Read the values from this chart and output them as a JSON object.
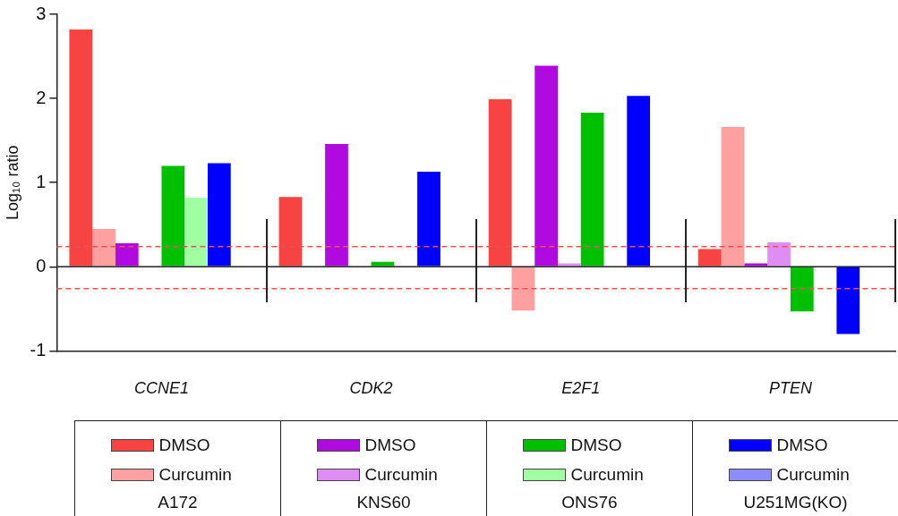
{
  "chart_data": {
    "type": "bar",
    "ylabel": "Log₁₀ ratio",
    "categories": [
      "CCNE1",
      "CDK2",
      "E2F1",
      "PTEN"
    ],
    "series": [
      {
        "name": "DMSO",
        "color": "#f84343",
        "values": [
          2.82,
          0.83,
          1.99,
          0.21
        ]
      },
      {
        "name": "Curcumin",
        "color": "#ffa0a0",
        "values": [
          0.45,
          null,
          -0.52,
          1.66
        ]
      },
      {
        "name": "DMSO",
        "color": "#b00ae0",
        "values": [
          0.28,
          1.46,
          2.39,
          0.04
        ]
      },
      {
        "name": "Curcumin",
        "color": "#e08cf5",
        "values": [
          null,
          null,
          0.04,
          0.29
        ]
      },
      {
        "name": "DMSO",
        "color": "#00c000",
        "values": [
          1.2,
          0.06,
          1.83,
          -0.53
        ]
      },
      {
        "name": "Curcumin",
        "color": "#a0ffa0",
        "values": [
          0.82,
          null,
          null,
          null
        ]
      },
      {
        "name": "DMSO",
        "color": "#0000ff",
        "values": [
          1.23,
          1.13,
          2.03,
          -0.8
        ]
      },
      {
        "name": "Curcumin",
        "color": "#8c8cff",
        "values": [
          null,
          null,
          null,
          null
        ]
      }
    ],
    "ylim": [
      -1,
      3
    ],
    "yticks": [
      -1,
      0,
      1,
      2,
      3
    ],
    "ref_lines": [
      {
        "axis": "y",
        "value": 0.24,
        "color": "#f05050",
        "line_style": "dashed"
      },
      {
        "axis": "y",
        "value": -0.26,
        "color": "#f05050",
        "line_style": "dashed"
      }
    ],
    "legend": "bottom",
    "annotations": [
      "A172",
      "KNS60",
      "ONS76",
      "U251MG(KO)"
    ]
  }
}
